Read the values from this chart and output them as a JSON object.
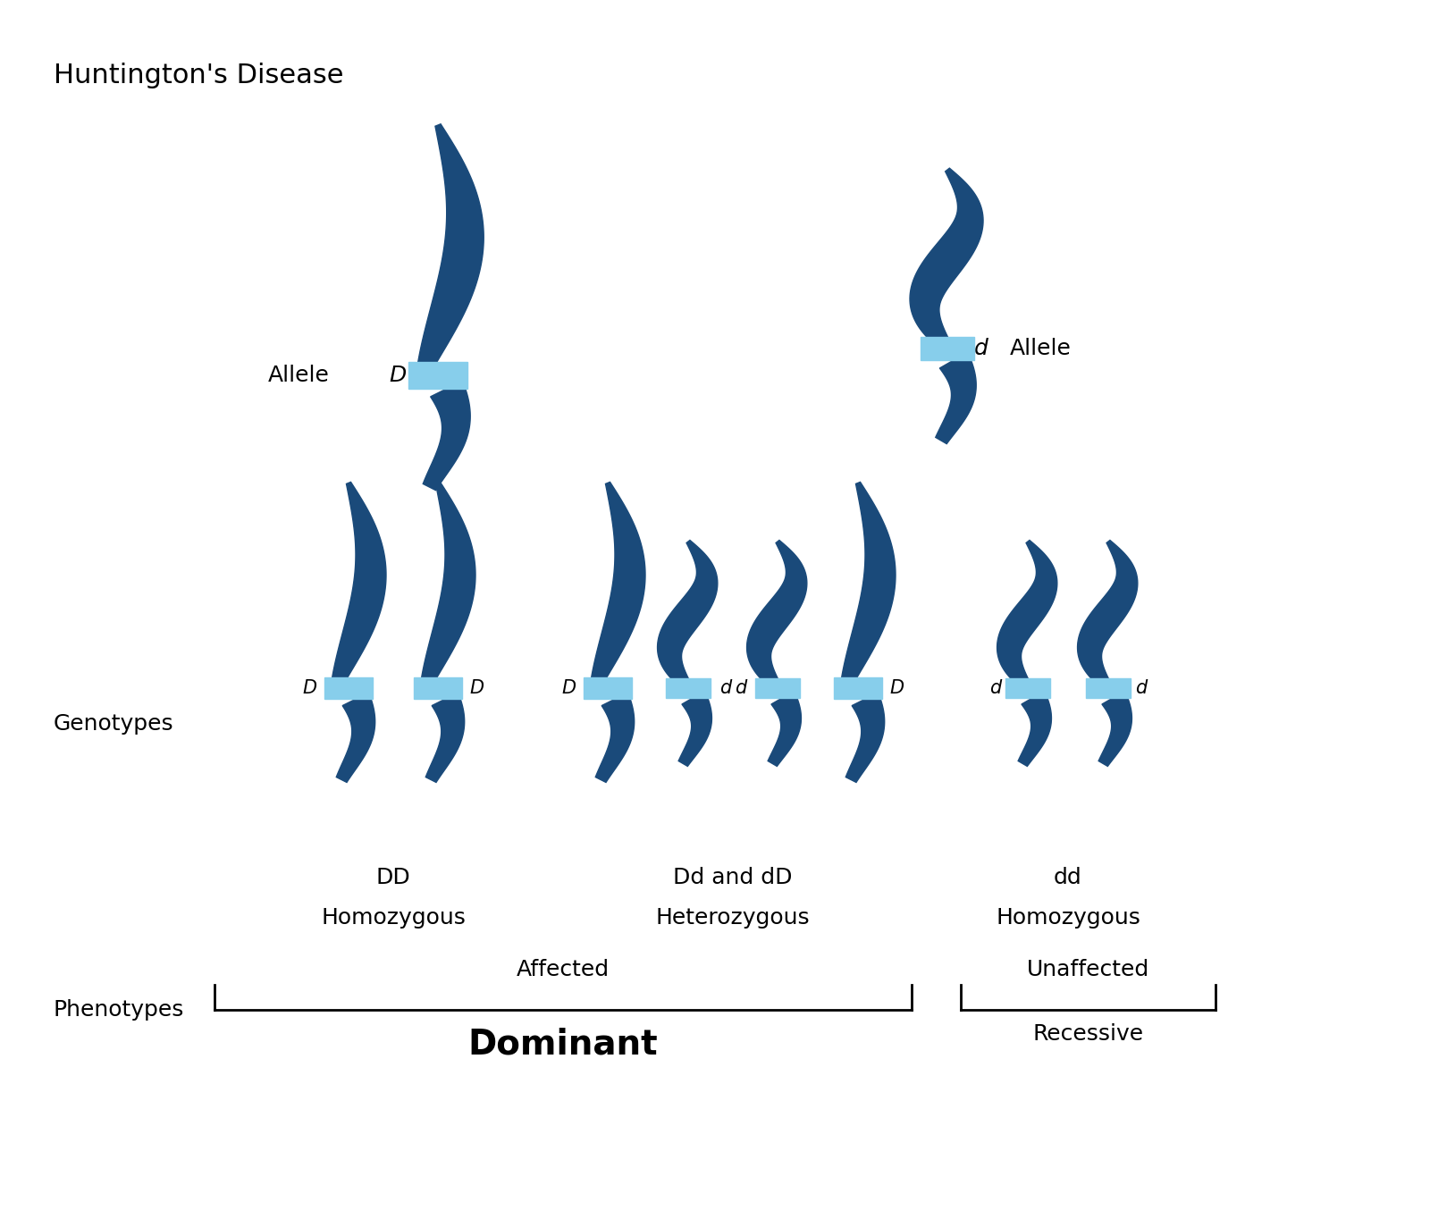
{
  "title": "Huntington's Disease",
  "bg_color": "#ffffff",
  "chrom_color": "#1a4a7a",
  "centromere_color": "#87ceeb",
  "title_fontsize": 22,
  "label_fontsize": 18,
  "allele_label_fontsize": 18,
  "allele_letter_fontsize": 18,
  "genotype_label_fontsize": 18,
  "phenotype_fontsize": 18,
  "dominant_fontsize": 28,
  "section_labels": {
    "genotypes": "Genotypes",
    "phenotypes": "Phenotypes"
  },
  "genotype_labels": [
    [
      "DD",
      "Homozygous"
    ],
    [
      "Dd and dD",
      "Heterozygous"
    ],
    [
      "dd",
      "Homozygous"
    ]
  ],
  "phenotype_dominant_label": "Affected",
  "phenotype_dominant": "Dominant",
  "phenotype_recessive_label": "Unaffected",
  "phenotype_recessive": "Recessive"
}
